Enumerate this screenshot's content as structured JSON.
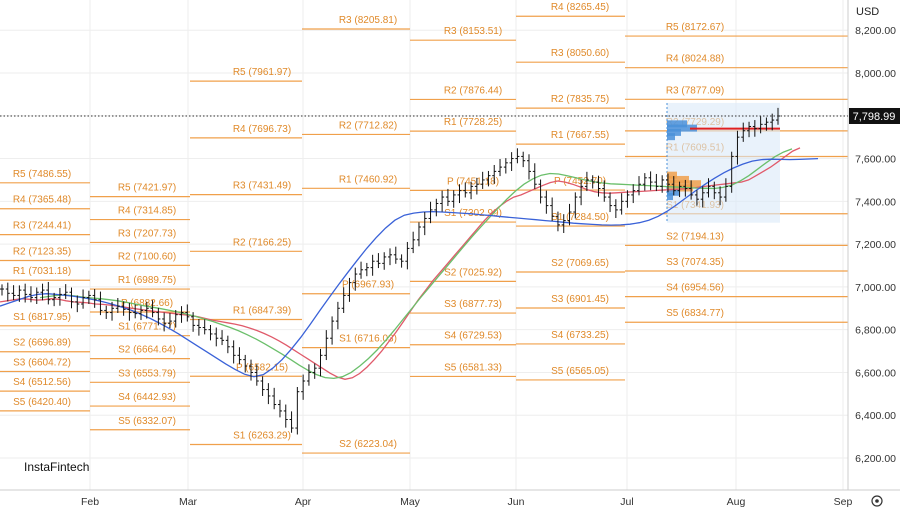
{
  "chart_data": {
    "type": "line",
    "currency": "USD",
    "brand": "InstaFintech",
    "last_price": 7798.99,
    "last_price_label": "7,798.99",
    "y_ticks": [
      "8,200.00",
      "8,000.00",
      "7,800.00",
      "7,600.00",
      "7,400.00",
      "7,200.00",
      "7,000.00",
      "6,800.00",
      "6,600.00",
      "6,400.00",
      "6,200.00"
    ],
    "y_tick_values": [
      8200,
      8000,
      7800,
      7600,
      7400,
      7200,
      7000,
      6800,
      6600,
      6400,
      6200
    ],
    "ylim": [
      6120,
      8300
    ],
    "x_ticks": [
      "Feb",
      "Mar",
      "Apr",
      "May",
      "Jun",
      "Jul",
      "Aug",
      "Sep"
    ],
    "grid": true,
    "pivots": [
      {
        "label": "R5 (7486.55)",
        "value": 7486.55,
        "period": 0
      },
      {
        "label": "R4 (7365.48)",
        "value": 7365.48,
        "period": 0
      },
      {
        "label": "R3 (7244.41)",
        "value": 7244.41,
        "period": 0
      },
      {
        "label": "R2 (7123.35)",
        "value": 7123.35,
        "period": 0
      },
      {
        "label": "R1 (7031.18)",
        "value": 7031.18,
        "period": 0
      },
      {
        "label": "S1 (6817.95)",
        "value": 6817.95,
        "period": 0
      },
      {
        "label": "S2 (6696.89)",
        "value": 6696.89,
        "period": 0
      },
      {
        "label": "S3 (6604.72)",
        "value": 6604.72,
        "period": 0
      },
      {
        "label": "S4 (6512.56)",
        "value": 6512.56,
        "period": 0
      },
      {
        "label": "S5 (6420.40)",
        "value": 6420.4,
        "period": 0
      },
      {
        "label": "R5 (7421.97)",
        "value": 7421.97,
        "period": 1
      },
      {
        "label": "R4 (7314.85)",
        "value": 7314.85,
        "period": 1
      },
      {
        "label": "R3 (7207.73)",
        "value": 7207.73,
        "period": 1
      },
      {
        "label": "R2 (7100.60)",
        "value": 7100.6,
        "period": 1
      },
      {
        "label": "R1 (6989.75)",
        "value": 6989.75,
        "period": 1
      },
      {
        "label": "P (6882.66)",
        "value": 6882.66,
        "period": 1
      },
      {
        "label": "S1 (6771.77)",
        "value": 6771.77,
        "period": 1
      },
      {
        "label": "S2 (6664.64)",
        "value": 6664.64,
        "period": 1
      },
      {
        "label": "S3 (6553.79)",
        "value": 6553.79,
        "period": 1
      },
      {
        "label": "S4 (6442.93)",
        "value": 6442.93,
        "period": 1
      },
      {
        "label": "S5 (6332.07)",
        "value": 6332.07,
        "period": 1
      },
      {
        "label": "R5 (7961.97)",
        "value": 7961.97,
        "period": 2
      },
      {
        "label": "R4 (7696.73)",
        "value": 7696.73,
        "period": 2
      },
      {
        "label": "R3 (7431.49)",
        "value": 7431.49,
        "period": 2
      },
      {
        "label": "R2 (7166.25)",
        "value": 7166.25,
        "period": 2
      },
      {
        "label": "R1 (6847.39)",
        "value": 6847.39,
        "period": 2
      },
      {
        "label": "P (6582.15)",
        "value": 6582.15,
        "period": 2
      },
      {
        "label": "S1 (6263.29)",
        "value": 6263.29,
        "period": 2
      },
      {
        "label": "R3 (8205.81)",
        "value": 8205.81,
        "period": 3
      },
      {
        "label": "R2 (7712.82)",
        "value": 7712.82,
        "period": 3
      },
      {
        "label": "R1 (7460.92)",
        "value": 7460.92,
        "period": 3
      },
      {
        "label": "P (6967.93)",
        "value": 6967.93,
        "period": 3
      },
      {
        "label": "S1 (6716.03)",
        "value": 6716.03,
        "period": 3
      },
      {
        "label": "S2 (6223.04)",
        "value": 6223.04,
        "period": 3
      },
      {
        "label": "R3 (8153.51)",
        "value": 8153.51,
        "period": 4
      },
      {
        "label": "R2 (7876.44)",
        "value": 7876.44,
        "period": 4
      },
      {
        "label": "R1 (7728.25)",
        "value": 7728.25,
        "period": 4
      },
      {
        "label": "P (7451.18)",
        "value": 7451.18,
        "period": 4
      },
      {
        "label": "S1 (7302.99)",
        "value": 7302.99,
        "period": 4
      },
      {
        "label": "S2 (7025.92)",
        "value": 7025.92,
        "period": 4
      },
      {
        "label": "S3 (6877.73)",
        "value": 6877.73,
        "period": 4
      },
      {
        "label": "S4 (6729.53)",
        "value": 6729.53,
        "period": 4
      },
      {
        "label": "S5 (6581.33)",
        "value": 6581.33,
        "period": 4
      },
      {
        "label": "R4 (8265.45)",
        "value": 8265.45,
        "period": 5
      },
      {
        "label": "R3 (8050.60)",
        "value": 8050.6,
        "period": 5
      },
      {
        "label": "R2 (7835.75)",
        "value": 7835.75,
        "period": 5
      },
      {
        "label": "R1 (7667.55)",
        "value": 7667.55,
        "period": 5
      },
      {
        "label": "P (7452.70)",
        "value": 7452.7,
        "period": 5
      },
      {
        "label": "S1 (7284.50)",
        "value": 7284.5,
        "period": 5
      },
      {
        "label": "S2 (7069.65)",
        "value": 7069.65,
        "period": 5
      },
      {
        "label": "S3 (6901.45)",
        "value": 6901.45,
        "period": 5
      },
      {
        "label": "S4 (6733.25)",
        "value": 6733.25,
        "period": 5
      },
      {
        "label": "S5 (6565.05)",
        "value": 6565.05,
        "period": 5
      },
      {
        "label": "R5 (8172.67)",
        "value": 8172.67,
        "period": 6
      },
      {
        "label": "R4 (8024.88)",
        "value": 8024.88,
        "period": 6
      },
      {
        "label": "R3 (7877.09)",
        "value": 7877.09,
        "period": 6
      },
      {
        "label": "R2 (7729.29)",
        "value": 7729.29,
        "period": 6
      },
      {
        "label": "R1 (7609.51)",
        "value": 7609.51,
        "period": 6
      },
      {
        "label": "S1 (7341.93)",
        "value": 7341.93,
        "period": 6
      },
      {
        "label": "S2 (7194.13)",
        "value": 7194.13,
        "period": 6
      },
      {
        "label": "S3 (7074.35)",
        "value": 7074.35,
        "period": 6
      },
      {
        "label": "S4 (6954.56)",
        "value": 6954.56,
        "period": 6
      },
      {
        "label": "S5 (6834.77)",
        "value": 6834.77,
        "period": 6
      }
    ],
    "close": [
      6990,
      6970,
      6960,
      6985,
      6965,
      6950,
      6975,
      6985,
      6940,
      6950,
      6965,
      6975,
      6930,
      6920,
      6950,
      6960,
      6940,
      6890,
      6880,
      6900,
      6910,
      6895,
      6880,
      6875,
      6890,
      6900,
      6880,
      6850,
      6830,
      6840,
      6870,
      6880,
      6860,
      6820,
      6810,
      6800,
      6780,
      6760,
      6750,
      6720,
      6680,
      6660,
      6630,
      6600,
      6560,
      6520,
      6490,
      6450,
      6420,
      6380,
      6340,
      6510,
      6560,
      6600,
      6620,
      6680,
      6760,
      6840,
      6900,
      6960,
      7020,
      7060,
      7080,
      7090,
      7120,
      7110,
      7140,
      7150,
      7130,
      7120,
      7180,
      7220,
      7280,
      7320,
      7360,
      7390,
      7420,
      7400,
      7430,
      7450,
      7440,
      7470,
      7480,
      7500,
      7520,
      7540,
      7560,
      7580,
      7600,
      7610,
      7590,
      7540,
      7480,
      7420,
      7380,
      7330,
      7290,
      7310,
      7350,
      7420,
      7470,
      7500,
      7490,
      7460,
      7420,
      7380,
      7360,
      7400,
      7430,
      7450,
      7480,
      7510,
      7490,
      7470,
      7500,
      7480,
      7450,
      7470,
      7460,
      7430,
      7410,
      7440,
      7470,
      7440,
      7420,
      7470,
      7610,
      7700,
      7730,
      7750,
      7740,
      7760,
      7770,
      7780,
      7799
    ],
    "series": [
      {
        "values": [
          6930,
          6935,
          6940,
          6945,
          6942,
          6938,
          6940,
          6945,
          6942,
          6935,
          6930,
          6928,
          6925,
          6920,
          6918,
          6915,
          6910,
          6905,
          6900,
          6895,
          6890,
          6886,
          6882,
          6878,
          6874,
          6870,
          6866,
          6860,
          6852,
          6844,
          6838,
          6832,
          6826,
          6818,
          6808,
          6796,
          6782,
          6766,
          6748,
          6728,
          6706,
          6684,
          6662,
          6640,
          6618,
          6596,
          6578,
          6568,
          6575,
          6595,
          6625,
          6660,
          6700,
          6745,
          6790,
          6840,
          6890,
          6940,
          6985,
          7030,
          7070,
          7110,
          7150,
          7190,
          7230,
          7270,
          7310,
          7345,
          7375,
          7400,
          7420,
          7430,
          7445,
          7460,
          7475,
          7488,
          7495,
          7490,
          7480,
          7468,
          7455,
          7445,
          7440,
          7438,
          7440,
          7442,
          7444,
          7446,
          7448,
          7450,
          7452,
          7454,
          7456,
          7458,
          7460,
          7465,
          7470,
          7474,
          7478,
          7482,
          7486,
          7490,
          7500,
          7520,
          7540,
          7560,
          7585,
          7610,
          7635,
          7650
        ]
      },
      {
        "values": [
          6950,
          6955,
          6960,
          6962,
          6958,
          6952,
          6948,
          6945,
          6940,
          6935,
          6928,
          6920,
          6912,
          6905,
          6898,
          6890,
          6882,
          6872,
          6862,
          6850,
          6838,
          6824,
          6810,
          6794,
          6776,
          6756,
          6734,
          6710,
          6686,
          6660,
          6634,
          6610,
          6590,
          6576,
          6572,
          6580,
          6600,
          6630,
          6665,
          6705,
          6750,
          6798,
          6848,
          6898,
          6948,
          6996,
          7045,
          7092,
          7140,
          7188,
          7235,
          7280,
          7325,
          7368,
          7410,
          7448,
          7480,
          7505,
          7522,
          7530,
          7528,
          7520,
          7510,
          7500,
          7492,
          7486,
          7482,
          7480,
          7478,
          7476,
          7474,
          7472,
          7470,
          7468,
          7466,
          7464,
          7462,
          7461,
          7460,
          7465,
          7475,
          7495,
          7520,
          7550,
          7580,
          7608,
          7630,
          7645
        ]
      },
      {
        "values": [
          6910,
          6925,
          6940,
          6955,
          6965,
          6968,
          6965,
          6960,
          6955,
          6948,
          6940,
          6930,
          6918,
          6905,
          6890,
          6872,
          6852,
          6830,
          6806,
          6780,
          6752,
          6724,
          6696,
          6668,
          6640,
          6614,
          6592,
          6580,
          6590,
          6620,
          6660,
          6710,
          6765,
          6825,
          6888,
          6950,
          7010,
          7068,
          7125,
          7180,
          7230,
          7275,
          7312,
          7335,
          7345,
          7350,
          7352,
          7350,
          7348,
          7345,
          7342,
          7338,
          7334,
          7330,
          7326,
          7322,
          7318,
          7314,
          7310,
          7306,
          7302,
          7298,
          7295,
          7292,
          7290,
          7289,
          7290,
          7293,
          7300,
          7312,
          7330,
          7355,
          7385,
          7418,
          7450,
          7480,
          7508,
          7534,
          7556,
          7574,
          7588,
          7595,
          7597,
          7596,
          7595,
          7596,
          7598,
          7600
        ]
      }
    ]
  }
}
